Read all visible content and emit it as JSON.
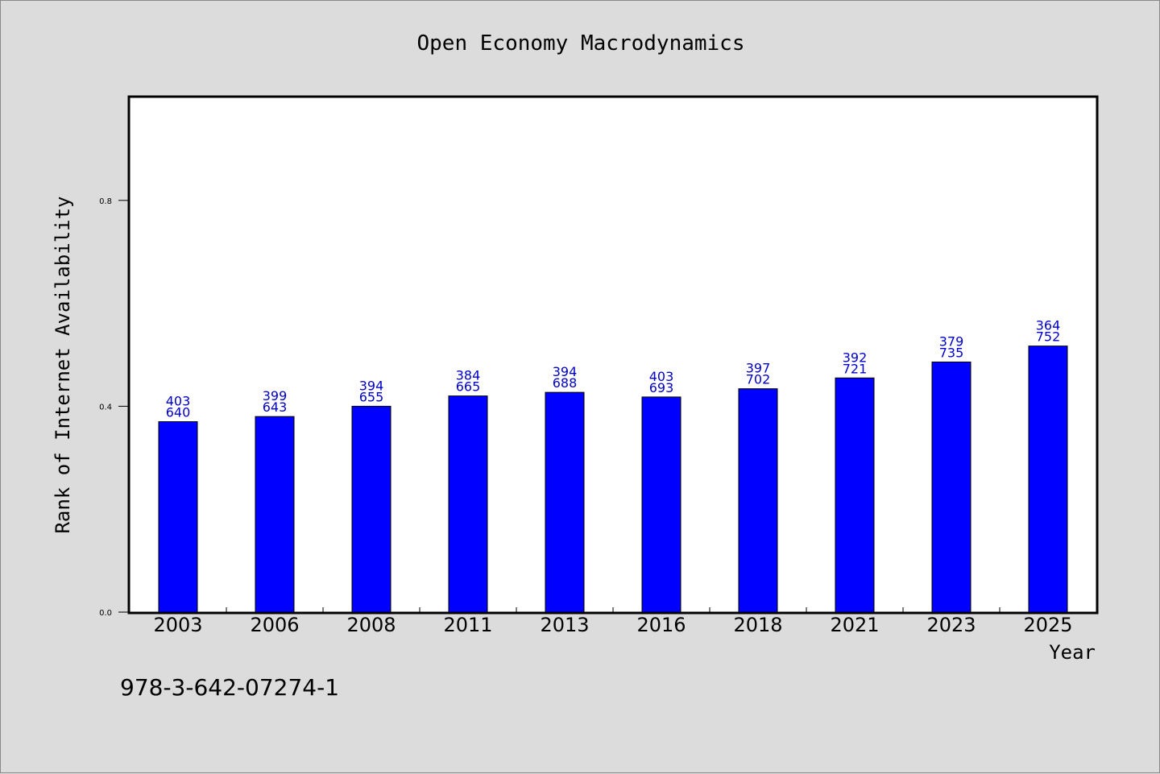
{
  "chart_data": {
    "type": "bar",
    "title": "Open Economy Macrodynamics",
    "xlabel": "Year",
    "ylabel": "Rank of Internet Availability",
    "ylim": [
      0,
      1.0
    ],
    "yticks": [
      "0.0",
      "0.4",
      "0.8"
    ],
    "categories": [
      "2003",
      "2006",
      "2008",
      "2011",
      "2013",
      "2016",
      "2018",
      "2021",
      "2023",
      "2025"
    ],
    "values": [
      0.37,
      0.38,
      0.4,
      0.42,
      0.427,
      0.418,
      0.434,
      0.455,
      0.486,
      0.517
    ],
    "labels_top": [
      "403",
      "399",
      "394",
      "384",
      "394",
      "403",
      "397",
      "392",
      "379",
      "364"
    ],
    "labels_bottom": [
      "640",
      "643",
      "655",
      "665",
      "688",
      "693",
      "702",
      "721",
      "735",
      "752"
    ],
    "bar_color": "#0000ff",
    "label_color": "#0000cc",
    "grid": false,
    "legend": "none"
  },
  "footer": {
    "isbn": "978-3-642-07274-1"
  }
}
